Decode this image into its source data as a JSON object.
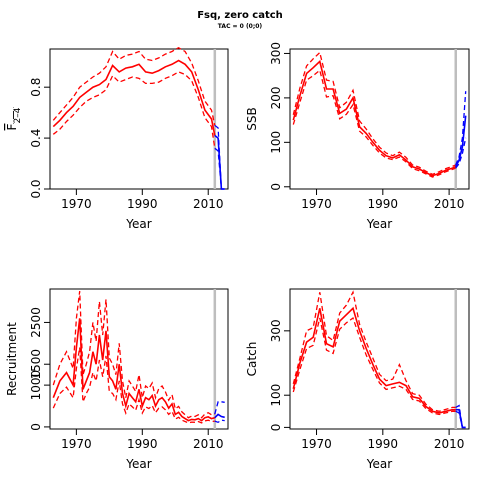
{
  "title": "Fsq, zero catch",
  "subtitle": "TAC = 0 (0;0)",
  "colors": {
    "historic": "#ff0000",
    "projection": "#0000ff",
    "reference_line": "#bebebe"
  },
  "chart_data": [
    {
      "type": "line",
      "name": "fbar",
      "xlabel": "Year",
      "ylabel_main": "F",
      "ylabel_sub": "2–4",
      "xlim": [
        1962,
        2016
      ],
      "ylim": [
        0,
        1.1
      ],
      "xticks": [
        1970,
        1990,
        2010
      ],
      "yticks": [
        0.0,
        0.4,
        0.8
      ],
      "ytick_labels": [
        "0.0",
        "0.4",
        "0.8"
      ],
      "reference_year": 2012,
      "historic": {
        "x": [
          1963,
          1965,
          1967,
          1969,
          1971,
          1973,
          1975,
          1977,
          1979,
          1981,
          1983,
          1985,
          1987,
          1989,
          1991,
          1993,
          1995,
          1997,
          1999,
          2001,
          2003,
          2005,
          2007,
          2009,
          2011,
          2012
        ],
        "median": [
          0.49,
          0.54,
          0.6,
          0.65,
          0.72,
          0.76,
          0.8,
          0.82,
          0.86,
          0.97,
          0.92,
          0.95,
          0.96,
          0.98,
          0.92,
          0.91,
          0.93,
          0.96,
          0.98,
          1.01,
          0.98,
          0.92,
          0.78,
          0.62,
          0.55,
          0.42
        ],
        "lower": [
          0.43,
          0.47,
          0.53,
          0.58,
          0.64,
          0.69,
          0.72,
          0.74,
          0.78,
          0.89,
          0.84,
          0.86,
          0.88,
          0.87,
          0.83,
          0.83,
          0.84,
          0.87,
          0.89,
          0.92,
          0.9,
          0.85,
          0.72,
          0.56,
          0.49,
          0.32
        ],
        "upper": [
          0.54,
          0.6,
          0.66,
          0.72,
          0.8,
          0.84,
          0.88,
          0.91,
          0.96,
          1.08,
          1.02,
          1.05,
          1.06,
          1.08,
          1.02,
          1.01,
          1.03,
          1.06,
          1.08,
          1.11,
          1.08,
          0.99,
          0.85,
          0.69,
          0.62,
          0.5
        ]
      },
      "projection": {
        "x": [
          2012,
          2013,
          2014,
          2015
        ],
        "median": [
          0.42,
          0.4,
          0.0,
          0.0
        ],
        "lower": [
          0.32,
          0.3,
          0.0,
          0.0
        ],
        "upper": [
          0.5,
          0.48,
          0.0,
          0.0
        ]
      }
    },
    {
      "type": "line",
      "name": "ssb",
      "xlabel": "Year",
      "ylabel_main": "SSB",
      "ylabel_sub": "",
      "xlim": [
        1962,
        2016
      ],
      "ylim": [
        -5,
        310
      ],
      "xticks": [
        1970,
        1990,
        2010
      ],
      "yticks": [
        0,
        100,
        200,
        300
      ],
      "ytick_labels": [
        "0",
        "100",
        "200",
        "300"
      ],
      "reference_year": 2012,
      "historic": {
        "x": [
          1963,
          1965,
          1967,
          1969,
          1971,
          1973,
          1975,
          1977,
          1979,
          1981,
          1983,
          1985,
          1987,
          1989,
          1991,
          1993,
          1995,
          1997,
          1999,
          2001,
          2003,
          2005,
          2007,
          2009,
          2011,
          2012
        ],
        "median": [
          150,
          205,
          255,
          268,
          282,
          220,
          220,
          165,
          175,
          200,
          135,
          120,
          100,
          82,
          70,
          65,
          72,
          60,
          45,
          40,
          32,
          25,
          30,
          37,
          42,
          45
        ],
        "lower": [
          140,
          190,
          240,
          250,
          262,
          202,
          205,
          153,
          163,
          185,
          125,
          112,
          93,
          76,
          65,
          61,
          67,
          56,
          41,
          36,
          29,
          22,
          27,
          34,
          39,
          42
        ],
        "upper": [
          162,
          222,
          272,
          288,
          302,
          240,
          237,
          178,
          190,
          217,
          148,
          130,
          108,
          89,
          76,
          70,
          78,
          66,
          49,
          44,
          35,
          28,
          34,
          41,
          46,
          49
        ]
      },
      "projection": {
        "x": [
          2012,
          2013,
          2014,
          2015
        ],
        "median": [
          45,
          60,
          90,
          160
        ],
        "lower": [
          42,
          52,
          75,
          110
        ],
        "upper": [
          49,
          68,
          110,
          215
        ]
      }
    },
    {
      "type": "line",
      "name": "recruitment",
      "xlabel": "Year",
      "ylabel_main": "Recruitment",
      "ylabel_sub": "",
      "xlim": [
        1962,
        2016
      ],
      "ylim": [
        -50,
        3300
      ],
      "xticks": [
        1970,
        1990,
        2010
      ],
      "yticks": [
        0,
        1000,
        1500,
        2500
      ],
      "ytick_labels": [
        "0",
        "1000",
        "1500",
        "2500"
      ],
      "reference_year": 2012,
      "historic": {
        "x": [
          1963,
          1965,
          1967,
          1969,
          1970,
          1971,
          1972,
          1973,
          1974,
          1975,
          1976,
          1977,
          1978,
          1979,
          1980,
          1981,
          1982,
          1983,
          1984,
          1985,
          1986,
          1987,
          1988,
          1989,
          1990,
          1991,
          1992,
          1993,
          1994,
          1995,
          1996,
          1997,
          1998,
          1999,
          2000,
          2001,
          2002,
          2003,
          2004,
          2005,
          2006,
          2007,
          2008,
          2009,
          2010,
          2011,
          2012
        ],
        "median": [
          700,
          1100,
          1300,
          1000,
          1900,
          2600,
          900,
          1100,
          1300,
          1800,
          1500,
          2200,
          1600,
          2300,
          1200,
          1100,
          900,
          1500,
          800,
          500,
          800,
          700,
          600,
          900,
          500,
          700,
          650,
          750,
          500,
          650,
          700,
          600,
          450,
          550,
          300,
          350,
          250,
          200,
          150,
          180,
          170,
          200,
          150,
          220,
          240,
          200,
          220
        ],
        "lower": [
          450,
          800,
          950,
          700,
          1400,
          1900,
          600,
          800,
          950,
          1300,
          1100,
          1600,
          1200,
          1700,
          850,
          800,
          650,
          1100,
          550,
          330,
          550,
          480,
          400,
          650,
          330,
          480,
          440,
          510,
          340,
          450,
          480,
          410,
          300,
          370,
          190,
          230,
          160,
          130,
          95,
          115,
          110,
          130,
          95,
          145,
          160,
          130,
          140
        ],
        "upper": [
          1000,
          1500,
          1800,
          1400,
          2600,
          3250,
          1250,
          1500,
          1800,
          2500,
          2050,
          3000,
          2200,
          3050,
          1650,
          1500,
          1250,
          2000,
          1100,
          700,
          1100,
          980,
          850,
          1250,
          700,
          980,
          920,
          1050,
          700,
          920,
          980,
          840,
          640,
          770,
          430,
          490,
          360,
          290,
          220,
          260,
          250,
          290,
          220,
          310,
          340,
          290,
          310
        ]
      },
      "projection": {
        "x": [
          2012,
          2013,
          2014,
          2015
        ],
        "median": [
          220,
          300,
          250,
          230
        ],
        "lower": [
          140,
          110,
          160,
          150
        ],
        "upper": [
          310,
          600,
          600,
          590
        ]
      }
    },
    {
      "type": "line",
      "name": "catch",
      "xlabel": "Year",
      "ylabel_main": "Catch",
      "ylabel_sub": "",
      "xlim": [
        1962,
        2016
      ],
      "ylim": [
        -5,
        430
      ],
      "xticks": [
        1970,
        1990,
        2010
      ],
      "yticks": [
        0,
        100,
        300
      ],
      "ytick_labels": [
        "0",
        "100",
        "300"
      ],
      "reference_year": 2012,
      "historic": {
        "x": [
          1963,
          1965,
          1967,
          1969,
          1971,
          1973,
          1975,
          1977,
          1979,
          1981,
          1983,
          1985,
          1987,
          1989,
          1991,
          1993,
          1995,
          1997,
          1999,
          2001,
          2003,
          2005,
          2007,
          2009,
          2011,
          2012
        ],
        "median": [
          120,
          200,
          265,
          280,
          370,
          260,
          250,
          330,
          350,
          370,
          300,
          245,
          195,
          150,
          130,
          135,
          140,
          130,
          95,
          90,
          65,
          50,
          45,
          50,
          55,
          55
        ],
        "lower": [
          110,
          180,
          245,
          255,
          340,
          240,
          230,
          305,
          325,
          340,
          280,
          225,
          180,
          138,
          118,
          123,
          128,
          118,
          87,
          82,
          58,
          45,
          40,
          45,
          50,
          50
        ],
        "upper": [
          135,
          215,
          300,
          310,
          420,
          285,
          270,
          355,
          380,
          420,
          320,
          265,
          215,
          165,
          145,
          150,
          195,
          145,
          105,
          100,
          72,
          55,
          50,
          56,
          62,
          62
        ]
      },
      "projection": {
        "x": [
          2012,
          2013,
          2014,
          2015
        ],
        "median": [
          55,
          55,
          0,
          0
        ],
        "lower": [
          50,
          45,
          0,
          0
        ],
        "upper": [
          62,
          68,
          0,
          0
        ]
      }
    }
  ]
}
